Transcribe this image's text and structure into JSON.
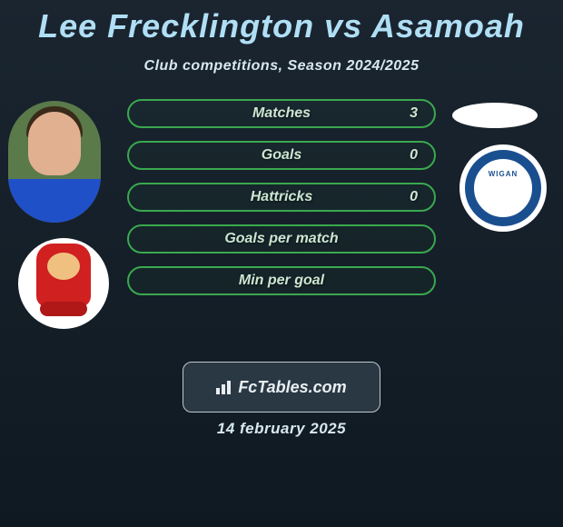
{
  "title": "Lee Frecklington vs Asamoah",
  "subtitle": "Club competitions, Season 2024/2025",
  "left_player": {
    "name": "Lee Frecklington",
    "jersey_color": "#2050c8",
    "background_color": "#5a7a4a"
  },
  "left_club": {
    "name": "Lincoln City",
    "primary_color": "#d02020",
    "bg_color": "#ffffff"
  },
  "right_player": {
    "name": "Asamoah",
    "placeholder_color": "#ffffff"
  },
  "right_club": {
    "name": "Wigan Athletic",
    "ring_color": "#1a4f8f",
    "bg_color": "#ffffff",
    "top_text": "WIGAN"
  },
  "stats": [
    {
      "label": "Matches",
      "value": "3"
    },
    {
      "label": "Goals",
      "value": "0"
    },
    {
      "label": "Hattricks",
      "value": "0"
    },
    {
      "label": "Goals per match",
      "value": ""
    },
    {
      "label": "Min per goal",
      "value": ""
    }
  ],
  "footer_brand": "FcTables.com",
  "footer_date": "14 february 2025",
  "style": {
    "title_color": "#b0dff5",
    "subtitle_color": "#d8e8f0",
    "pill_border_color": "#3aa84e",
    "pill_text_color": "#cde6d2",
    "bg_top": "#1a2530",
    "bg_bottom": "#0f1921",
    "badge_bg": "#2a3844",
    "badge_border": "#bfc7cd",
    "title_fontsize": 36,
    "subtitle_fontsize": 16,
    "stat_fontsize": 16
  }
}
